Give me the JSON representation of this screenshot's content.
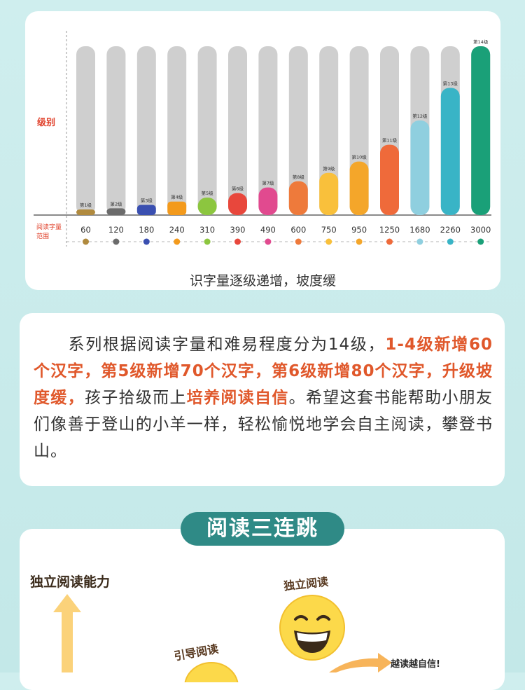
{
  "chart_data": {
    "type": "bar",
    "ylabel": "级别",
    "xlabel": "阅读字量范围",
    "caption": "识字量逐级递增，坡度缓",
    "categories": [
      "第1级",
      "第2级",
      "第3级",
      "第4级",
      "第5级",
      "第6级",
      "第7级",
      "第8级",
      "第9级",
      "第10级",
      "第11级",
      "第12级",
      "第13级",
      "第14级"
    ],
    "values": [
      60,
      120,
      180,
      240,
      310,
      390,
      490,
      600,
      750,
      950,
      1250,
      1680,
      2260,
      3000
    ],
    "value_labels": [
      "60",
      "120",
      "180",
      "240",
      "310",
      "390",
      "490",
      "600",
      "750",
      "950",
      "1250",
      "1680",
      "2260",
      "3000"
    ],
    "colors": [
      "#b08a3e",
      "#6b6b6b",
      "#3a4fb0",
      "#f39a1c",
      "#8cc63f",
      "#e8473c",
      "#e14a8f",
      "#ee7a3b",
      "#f9c03b",
      "#f4a62a",
      "#ef6a3a",
      "#8fcfdf",
      "#39b4c6",
      "#1aa078"
    ],
    "background_bar_color": "#cfcfcf",
    "grid": false
  },
  "description": {
    "segments": [
      {
        "text": "　　系列根据阅读字量和难易程度分为14级，",
        "hl": false
      },
      {
        "text": "1-4级新增60个汉字，第5级新增70个汉字，第6级新增80个汉字，升级坡度缓，",
        "hl": true
      },
      {
        "text": "孩子拾级而上",
        "hl": false
      },
      {
        "text": "培养阅读自信",
        "hl": true
      },
      {
        "text": "。希望这套书能帮助小朋友们像善于登山的小羊一样，轻松愉悦地学会自主阅读，攀登书山。",
        "hl": false
      }
    ]
  },
  "section": {
    "title": "阅读三连跳",
    "ability_label": "独立阅读能力",
    "independent_label": "独立阅读",
    "guided_label": "引导阅读",
    "confidence_label": "越读越自信!"
  }
}
